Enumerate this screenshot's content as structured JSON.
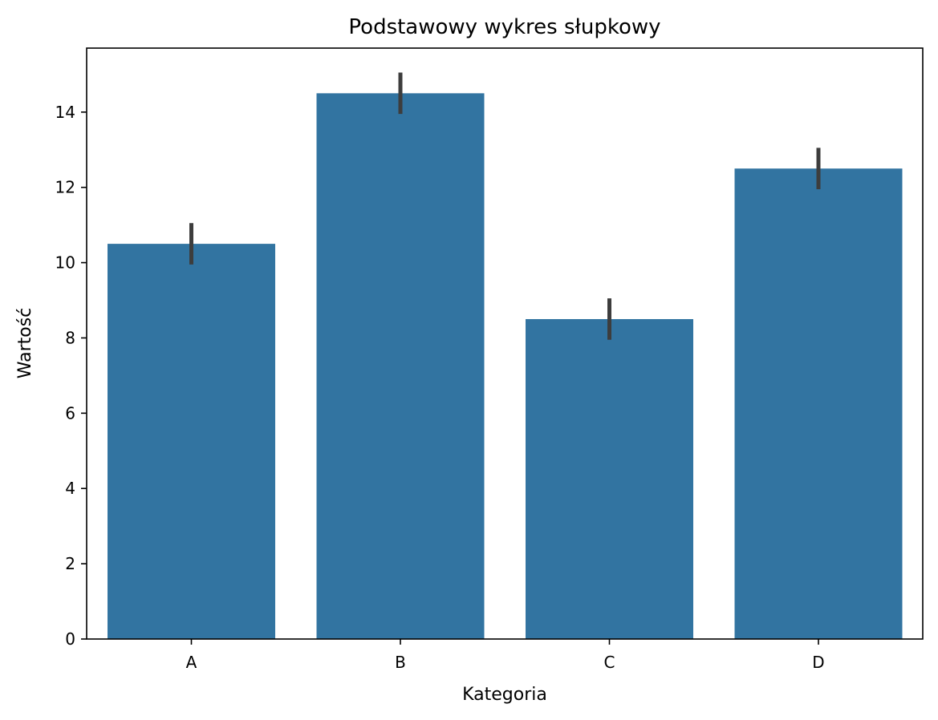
{
  "chart_data": {
    "type": "bar",
    "title": "Podstawowy wykres słupkowy",
    "xlabel": "Kategoria",
    "ylabel": "Wartość",
    "categories": [
      "A",
      "B",
      "C",
      "D"
    ],
    "values": [
      10.5,
      14.5,
      8.5,
      12.5
    ],
    "error_bars": [
      {
        "low": 9.95,
        "high": 11.05
      },
      {
        "low": 13.95,
        "high": 15.05
      },
      {
        "low": 7.95,
        "high": 9.05
      },
      {
        "low": 11.95,
        "high": 13.05
      }
    ],
    "ylim": [
      0,
      15.7
    ],
    "yticks": [
      0,
      2,
      4,
      6,
      8,
      10,
      12,
      14
    ],
    "grid": false,
    "colors": {
      "bar": "#3274a1",
      "error_bar": "#3d3d3d",
      "axes": "#000000",
      "background": "#ffffff"
    }
  }
}
